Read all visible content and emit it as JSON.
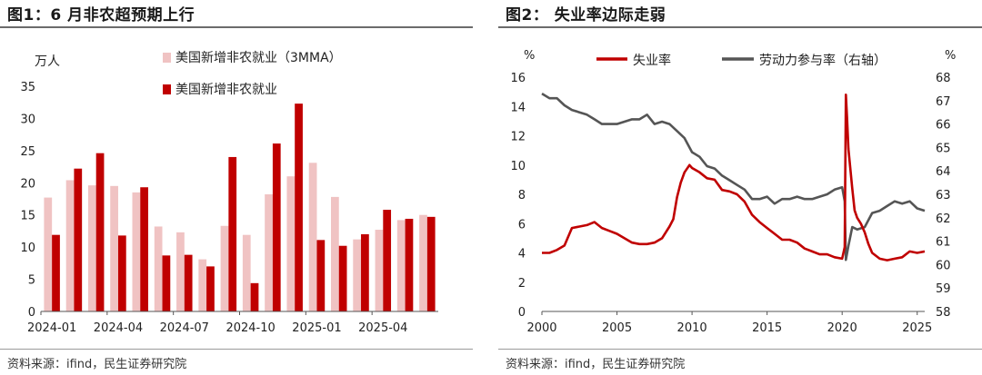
{
  "left_panel": {
    "title": "图1：6 月非农超预期上行",
    "source": "资料来源：ifind，民生证券研究院"
  },
  "right_panel": {
    "title": "图2：  失业率边际走弱",
    "source": "资料来源：ifind，民生证券研究院"
  },
  "chart_data": [
    {
      "type": "bar",
      "unit_label": "万人",
      "ylim": [
        0,
        35
      ],
      "yticks": [
        0,
        5,
        10,
        15,
        20,
        25,
        30,
        35
      ],
      "categories": [
        "2024-01",
        "2024-02",
        "2024-03",
        "2024-04",
        "2024-05",
        "2024-06",
        "2024-07",
        "2024-08",
        "2024-09",
        "2024-10",
        "2024-11",
        "2024-12",
        "2025-01",
        "2025-02",
        "2025-03",
        "2025-04",
        "2025-05",
        "2025-06"
      ],
      "x_tick_labels": [
        "2024-01",
        "2024-04",
        "2024-07",
        "2024-10",
        "2025-01",
        "2025-04"
      ],
      "series": [
        {
          "name": "美国新增非农就业（3MMA）",
          "color": "#f0c3c3",
          "values": [
            17.7,
            20.4,
            19.6,
            19.5,
            18.5,
            13.2,
            12.3,
            8.1,
            13.3,
            11.9,
            18.2,
            21.0,
            23.1,
            17.8,
            11.2,
            12.7,
            14.2,
            15.0
          ]
        },
        {
          "name": "美国新增非农就业",
          "color": "#c00000",
          "values": [
            11.9,
            22.2,
            24.6,
            11.8,
            19.3,
            8.7,
            8.8,
            7.0,
            24.0,
            4.4,
            26.1,
            32.3,
            11.1,
            10.2,
            12.0,
            15.8,
            14.4,
            14.7
          ]
        }
      ],
      "legend_placement": "top"
    },
    {
      "type": "line",
      "y_unit_left": "%",
      "y_unit_right": "%",
      "ylim": [
        0,
        16
      ],
      "yticks": [
        0,
        2,
        4,
        6,
        8,
        10,
        12,
        14,
        16
      ],
      "ylim_right": [
        58,
        68
      ],
      "yticks_right": [
        58,
        59,
        60,
        61,
        62,
        63,
        64,
        65,
        66,
        67,
        68
      ],
      "xlim": [
        2000,
        2025.5
      ],
      "xticks": [
        2000,
        2005,
        2010,
        2015,
        2020,
        2025
      ],
      "legend_placement": "top",
      "series": [
        {
          "name": "失业率",
          "color": "#c00000",
          "axis": "left",
          "x": [
            2000.0,
            2000.5,
            2001.0,
            2001.5,
            2002.0,
            2002.5,
            2003.0,
            2003.5,
            2004.0,
            2004.5,
            2005.0,
            2005.5,
            2006.0,
            2006.5,
            2007.0,
            2007.5,
            2008.0,
            2008.5,
            2008.75,
            2009.0,
            2009.25,
            2009.5,
            2009.83,
            2010.0,
            2010.5,
            2011.0,
            2011.5,
            2012.0,
            2012.5,
            2013.0,
            2013.5,
            2014.0,
            2014.5,
            2015.0,
            2015.5,
            2016.0,
            2016.5,
            2017.0,
            2017.5,
            2018.0,
            2018.5,
            2019.0,
            2019.5,
            2020.0,
            2020.17,
            2020.25,
            2020.33,
            2020.42,
            2020.5,
            2020.67,
            2020.83,
            2021.0,
            2021.25,
            2021.5,
            2021.75,
            2022.0,
            2022.5,
            2023.0,
            2023.5,
            2024.0,
            2024.5,
            2025.0,
            2025.5
          ],
          "y": [
            4.0,
            4.0,
            4.2,
            4.5,
            5.7,
            5.8,
            5.9,
            6.1,
            5.7,
            5.5,
            5.3,
            5.0,
            4.7,
            4.6,
            4.6,
            4.7,
            5.0,
            5.8,
            6.3,
            7.8,
            8.8,
            9.5,
            10.0,
            9.8,
            9.5,
            9.1,
            9.0,
            8.3,
            8.2,
            8.0,
            7.5,
            6.6,
            6.1,
            5.7,
            5.3,
            4.9,
            4.9,
            4.7,
            4.3,
            4.1,
            3.9,
            3.9,
            3.7,
            3.6,
            4.4,
            14.8,
            13.2,
            11.1,
            10.2,
            8.4,
            6.9,
            6.4,
            6.0,
            5.4,
            4.6,
            4.0,
            3.6,
            3.5,
            3.6,
            3.7,
            4.1,
            4.0,
            4.1
          ]
        },
        {
          "name": "劳动力参与率（右轴）",
          "color": "#555555",
          "axis": "right",
          "x": [
            2000.0,
            2000.5,
            2001.0,
            2001.5,
            2002.0,
            2002.5,
            2003.0,
            2003.5,
            2004.0,
            2004.5,
            2005.0,
            2005.5,
            2006.0,
            2006.5,
            2007.0,
            2007.5,
            2008.0,
            2008.5,
            2009.0,
            2009.5,
            2010.0,
            2010.5,
            2011.0,
            2011.5,
            2012.0,
            2012.5,
            2013.0,
            2013.5,
            2014.0,
            2014.5,
            2015.0,
            2015.5,
            2016.0,
            2016.5,
            2017.0,
            2017.5,
            2018.0,
            2018.5,
            2019.0,
            2019.5,
            2020.0,
            2020.17,
            2020.25,
            2020.42,
            2020.67,
            2021.0,
            2021.5,
            2022.0,
            2022.5,
            2023.0,
            2023.5,
            2024.0,
            2024.5,
            2025.0,
            2025.5
          ],
          "y": [
            67.3,
            67.1,
            67.1,
            66.8,
            66.6,
            66.5,
            66.4,
            66.2,
            66.0,
            66.0,
            66.0,
            66.1,
            66.2,
            66.2,
            66.4,
            66.0,
            66.1,
            66.0,
            65.7,
            65.4,
            64.8,
            64.6,
            64.2,
            64.1,
            63.8,
            63.6,
            63.4,
            63.2,
            62.8,
            62.8,
            62.9,
            62.6,
            62.8,
            62.8,
            62.9,
            62.8,
            62.8,
            62.9,
            63.0,
            63.2,
            63.3,
            62.7,
            60.2,
            60.8,
            61.6,
            61.5,
            61.6,
            62.2,
            62.3,
            62.5,
            62.7,
            62.6,
            62.7,
            62.4,
            62.3
          ]
        }
      ]
    }
  ]
}
